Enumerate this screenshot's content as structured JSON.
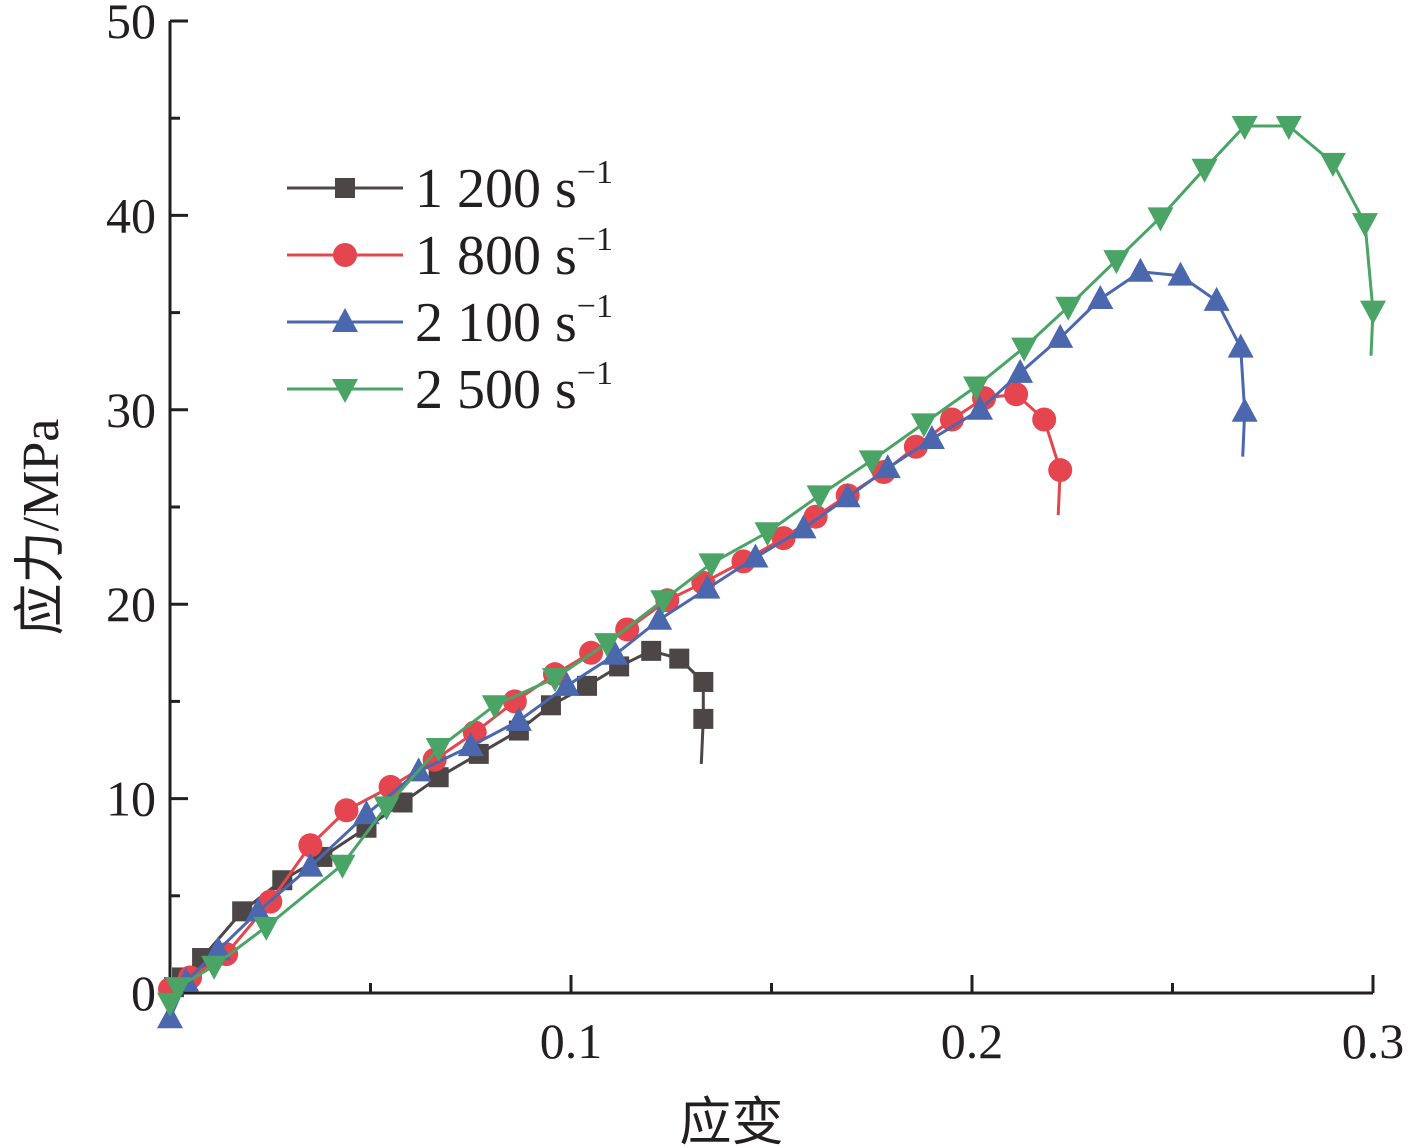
{
  "chart_data": {
    "type": "line",
    "title": "",
    "xlabel": "应变",
    "ylabel": "应力/MPa",
    "xlim": [
      0,
      0.3
    ],
    "ylim": [
      0,
      50
    ],
    "x_ticks": [
      0.1,
      0.2,
      0.3
    ],
    "x_tick_labels": [
      "0.1",
      "0.2",
      "0.3"
    ],
    "y_ticks": [
      0,
      10,
      20,
      30,
      40,
      50
    ],
    "y_tick_labels": [
      "0",
      "10",
      "20",
      "30",
      "40",
      "50"
    ],
    "grid": false,
    "legend_position": "top-left",
    "series": [
      {
        "name": "1 200 s",
        "name_superscript": "−1",
        "color": "#4d4646",
        "marker": "square",
        "x": [
          0.001,
          0.003,
          0.008,
          0.018,
          0.028,
          0.038,
          0.049,
          0.058,
          0.067,
          0.077,
          0.087,
          0.095,
          0.104,
          0.112,
          0.12,
          0.127,
          0.133,
          0.133
        ],
        "y": [
          0.3,
          0.8,
          1.8,
          4.2,
          5.8,
          7.0,
          8.5,
          9.8,
          11.1,
          12.3,
          13.5,
          14.8,
          15.8,
          16.8,
          17.6,
          17.2,
          16.0,
          14.1
        ]
      },
      {
        "name": "1 800 s",
        "name_superscript": "−1",
        "color": "#e5454f",
        "marker": "circle",
        "x": [
          0.0,
          0.005,
          0.014,
          0.025,
          0.035,
          0.044,
          0.055,
          0.066,
          0.076,
          0.086,
          0.096,
          0.105,
          0.114,
          0.124,
          0.133,
          0.143,
          0.153,
          0.161,
          0.169,
          0.178,
          0.186,
          0.195,
          0.203,
          0.211,
          0.218,
          0.222
        ],
        "y": [
          0.2,
          0.8,
          2.0,
          4.7,
          7.6,
          9.4,
          10.6,
          12.0,
          13.4,
          15.0,
          16.4,
          17.5,
          18.7,
          20.2,
          21.1,
          22.2,
          23.4,
          24.5,
          25.6,
          26.8,
          28.1,
          29.5,
          30.6,
          30.8,
          29.5,
          26.9
        ]
      },
      {
        "name": "2 100 s",
        "name_superscript": "−1",
        "color": "#4b67ae",
        "marker": "triangle-up",
        "x": [
          0.0,
          0.004,
          0.012,
          0.022,
          0.035,
          0.049,
          0.062,
          0.075,
          0.087,
          0.099,
          0.111,
          0.122,
          0.134,
          0.146,
          0.158,
          0.169,
          0.179,
          0.19,
          0.202,
          0.212,
          0.222,
          0.232,
          0.242,
          0.252,
          0.261,
          0.267,
          0.268
        ],
        "y": [
          -1.3,
          0.6,
          2.2,
          4.2,
          6.5,
          9.2,
          11.4,
          12.7,
          14.0,
          15.8,
          17.4,
          19.2,
          20.8,
          22.4,
          23.9,
          25.5,
          27.0,
          28.5,
          30.0,
          31.9,
          33.7,
          35.7,
          37.1,
          36.9,
          35.6,
          33.2,
          29.9
        ]
      },
      {
        "name": "2 500 s",
        "name_superscript": "−1",
        "color": "#4aa466",
        "marker": "triangle-down",
        "x": [
          0.0,
          0.002,
          0.011,
          0.024,
          0.043,
          0.054,
          0.067,
          0.081,
          0.096,
          0.109,
          0.123,
          0.135,
          0.149,
          0.162,
          0.175,
          0.188,
          0.201,
          0.213,
          0.224,
          0.236,
          0.247,
          0.258,
          0.268,
          0.279,
          0.29,
          0.298,
          0.3
        ],
        "y": [
          -0.5,
          0.3,
          1.4,
          3.4,
          6.6,
          9.6,
          12.6,
          14.8,
          16.2,
          18.0,
          20.2,
          22.1,
          23.7,
          25.6,
          27.4,
          29.3,
          31.2,
          33.2,
          35.3,
          37.7,
          39.9,
          42.4,
          44.6,
          44.6,
          42.7,
          39.6,
          35.1
        ]
      }
    ]
  }
}
